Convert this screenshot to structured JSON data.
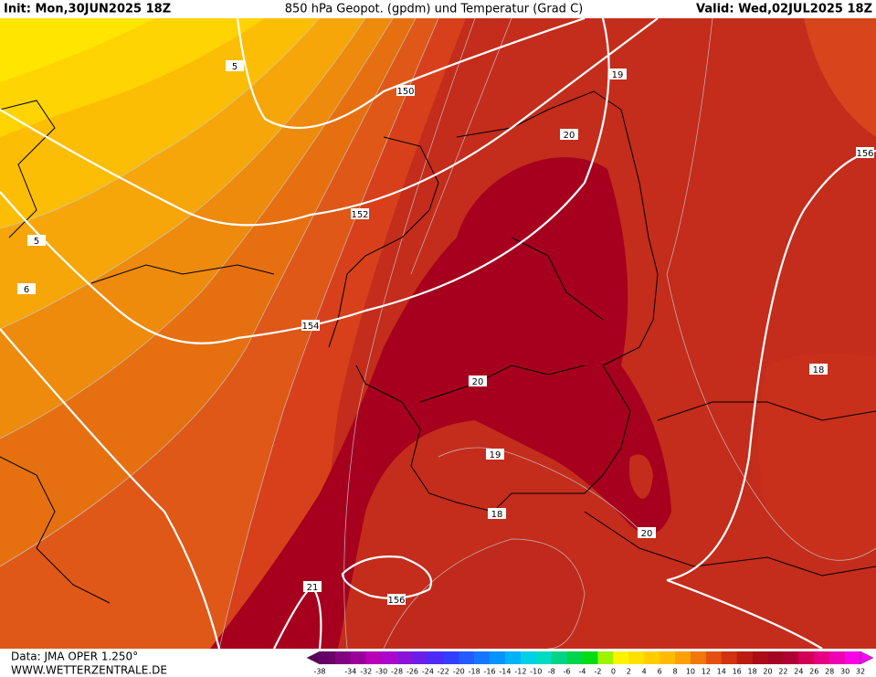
{
  "header": {
    "init": "Init: Mon,30JUN2025 18Z",
    "title": "850 hPa Geopot. (gpdm) und Temperatur (Grad C)",
    "valid": "Valid: Wed,02JUL2025 18Z"
  },
  "contour_labels": [
    5,
    150,
    19,
    20,
    156,
    152,
    5,
    6,
    154,
    20,
    18,
    19,
    18,
    20,
    21,
    156
  ],
  "legend": {
    "labels": [
      -38,
      -34,
      -32,
      -30,
      -28,
      -26,
      -24,
      -22,
      -20,
      -18,
      -16,
      -14,
      -12,
      -10,
      -8,
      -6,
      -4,
      -2,
      0,
      2,
      4,
      6,
      8,
      10,
      12,
      14,
      16,
      18,
      20,
      22,
      24,
      26,
      28,
      30,
      32
    ]
  },
  "footer": {
    "source": "Data: JMA OPER 1.250°",
    "website": "WWW.WETTERZENTRALE.DE"
  }
}
